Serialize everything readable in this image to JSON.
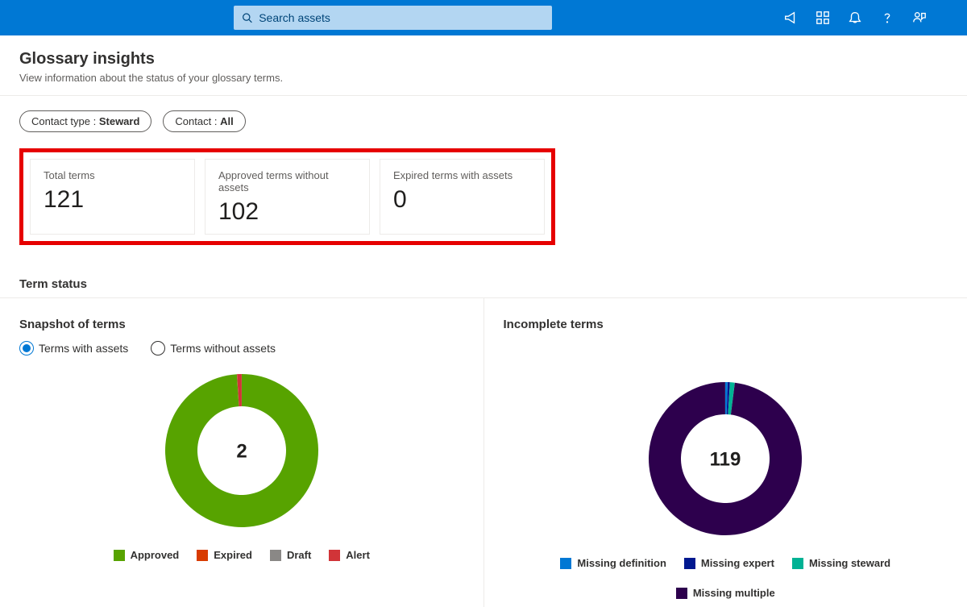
{
  "header": {
    "search_placeholder": "Search assets"
  },
  "page": {
    "title": "Glossary insights",
    "subtitle": "View information about the status of your glossary terms."
  },
  "filters": {
    "contact_type_label": "Contact type :",
    "contact_type_value": "Steward",
    "contact_label": "Contact :",
    "contact_value": "All"
  },
  "kpis": {
    "total_terms_label": "Total terms",
    "total_terms_value": "121",
    "approved_no_assets_label": "Approved terms without assets",
    "approved_no_assets_value": "102",
    "expired_with_assets_label": "Expired terms with assets",
    "expired_with_assets_value": "0"
  },
  "term_status": {
    "section_label": "Term status",
    "snapshot": {
      "title": "Snapshot of terms",
      "radio_with": "Terms with assets",
      "radio_without": "Terms without assets",
      "chart": {
        "type": "donut",
        "center_value": "2",
        "slices": [
          {
            "label": "Approved",
            "value": 99,
            "color": "#57a300"
          },
          {
            "label": "Expired",
            "value": 0,
            "color": "#d83b01"
          },
          {
            "label": "Draft",
            "value": 0,
            "color": "#8a8886"
          },
          {
            "label": "Alert",
            "value": 1,
            "color": "#d13438"
          }
        ],
        "ring_inner_radius": 55,
        "ring_outer_radius": 95,
        "background_color": "#ffffff"
      },
      "legend": [
        {
          "label": "Approved",
          "color": "#57a300"
        },
        {
          "label": "Expired",
          "color": "#d83b01"
        },
        {
          "label": "Draft",
          "color": "#8a8886"
        },
        {
          "label": "Alert",
          "color": "#d13438"
        }
      ]
    },
    "incomplete": {
      "title": "Incomplete terms",
      "chart": {
        "type": "donut",
        "center_value": "119",
        "slices": [
          {
            "label": "Missing definition",
            "value": 0.5,
            "color": "#0078d4"
          },
          {
            "label": "Missing expert",
            "value": 0.5,
            "color": "#00188f"
          },
          {
            "label": "Missing steward",
            "value": 1,
            "color": "#00b294"
          },
          {
            "label": "Missing multiple",
            "value": 98,
            "color": "#2d004d"
          }
        ],
        "ring_inner_radius": 55,
        "ring_outer_radius": 95,
        "background_color": "#ffffff"
      },
      "legend": [
        {
          "label": "Missing definition",
          "color": "#0078d4"
        },
        {
          "label": "Missing expert",
          "color": "#00188f"
        },
        {
          "label": "Missing steward",
          "color": "#00b294"
        },
        {
          "label": "Missing multiple",
          "color": "#2d004d"
        }
      ]
    }
  }
}
